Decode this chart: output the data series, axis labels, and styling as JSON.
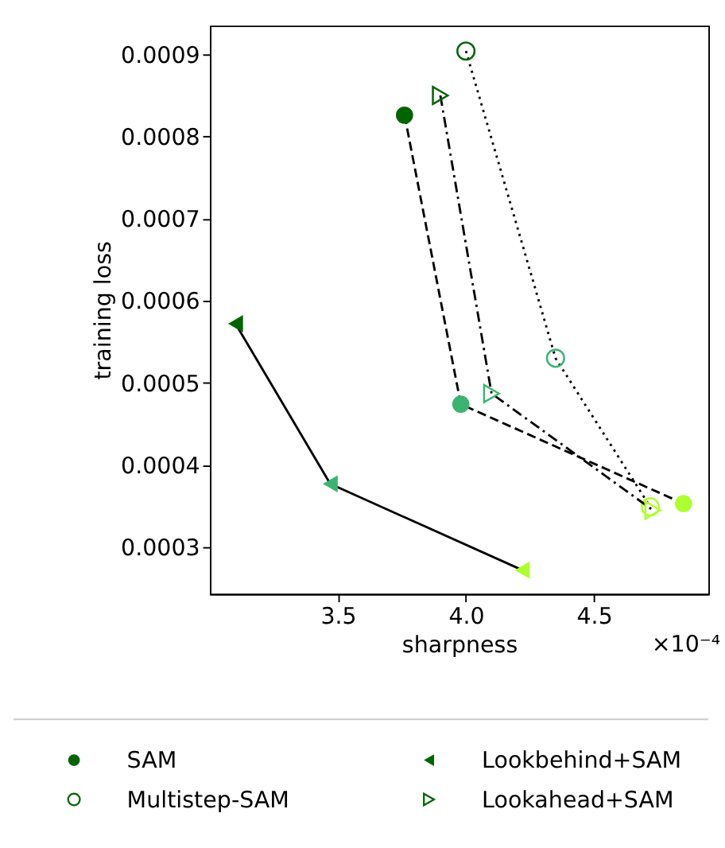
{
  "chart_data": {
    "type": "line",
    "xlabel": "sharpness",
    "ylabel": "training loss",
    "xlim": [
      3.0,
      4.947
    ],
    "ylim": [
      0.000243,
      0.000935
    ],
    "xticks": [
      {
        "value": 3.5,
        "label": "3.5"
      },
      {
        "value": 4,
        "label": "4.0"
      },
      {
        "value": 4.5,
        "label": "4.5"
      }
    ],
    "yticks": [
      0.0003,
      0.0004,
      0.0005,
      0.0006,
      0.0007,
      0.0008,
      0.0009
    ],
    "annotations": [
      "×10⁻⁴"
    ],
    "legend": "bottom",
    "grid": false,
    "series": [
      {
        "name": "SAM",
        "marker": "circle",
        "line_style": "dashed",
        "color": "#000000",
        "x": [
          3.76,
          3.98,
          4.85
        ],
        "values": [
          0.000826,
          0.000474,
          0.000353
        ],
        "colors": [
          "#006400",
          "#3cb371",
          "#adff2f"
        ]
      },
      {
        "name": "Multistep-SAM",
        "marker": "circle-open",
        "line_style": "dotted",
        "color": "#000000",
        "x": [
          4.0,
          4.35,
          4.72
        ],
        "values": [
          0.000904,
          0.00053,
          0.000349
        ],
        "colors": [
          "#006400",
          "#3cb371",
          "#adff2f"
        ]
      },
      {
        "name": "Lookbehind+SAM",
        "marker": "triangle-left",
        "line_style": "solid",
        "color": "#000000",
        "x": [
          3.1,
          3.47,
          4.22
        ],
        "values": [
          0.000572,
          0.000377,
          0.000272
        ],
        "colors": [
          "#006400",
          "#3cb371",
          "#adff2f"
        ]
      },
      {
        "name": "Lookahead+SAM",
        "marker": "triangle-right-open",
        "line_style": "dashdot",
        "color": "#000000",
        "x": [
          3.9,
          4.1,
          4.73
        ],
        "values": [
          0.00085,
          0.000487,
          0.000345
        ],
        "colors": [
          "#006400",
          "#3cb371",
          "#adff2f"
        ]
      }
    ]
  }
}
